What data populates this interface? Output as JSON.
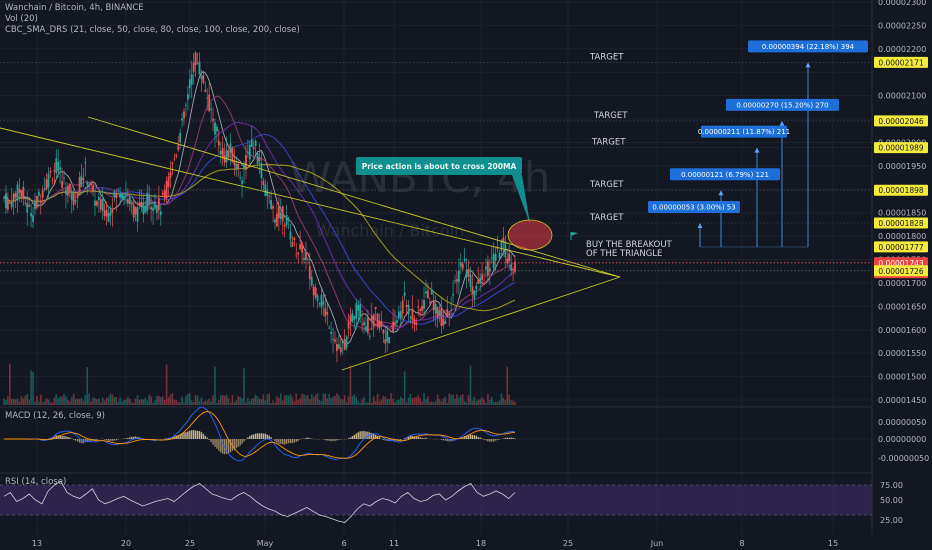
{
  "header": {
    "title": "Wanchain / Bitcoin, 4h, BINANCE",
    "vol_label": "Vol (20)",
    "sma_label": "CBC_SMA_DRS (21, close, 50, close, 80, close, 100, close, 200, close)"
  },
  "watermark": {
    "symbol": "WANBTC, 4h",
    "name": "Wanchain / Bitcoin"
  },
  "colors": {
    "background": "#131722",
    "up": "#26a69a",
    "down": "#ef5350",
    "trendline": "#c9c928",
    "target_box": "#1e6fd9",
    "arrow": "#5ba3f5",
    "callout": "#0f8f8f",
    "yellow_label": "#f5eb3b",
    "red_label": "#f04040",
    "rsi_band": "#3b2a5c",
    "macd_line": "#2962ff",
    "signal_line": "#ff9800"
  },
  "chart_data": [
    {
      "type": "candlestick",
      "title": "Wanchain / Bitcoin, 4h, BINANCE",
      "ylim": [
        1.44e-05,
        2.3e-05
      ],
      "x_axis_labels": [
        "13",
        "20",
        "25",
        "May",
        "6",
        "11",
        "18",
        "25",
        "Jun",
        "8",
        "15"
      ],
      "y_axis_labels": [
        "0.00002300",
        "0.00002250",
        "0.00002200",
        "0.00002100",
        "0.00002050",
        "0.00002000",
        "0.00001950",
        "0.00001850",
        "0.00001800",
        "0.00001750",
        "0.00001700",
        "0.00001650",
        "0.00001600",
        "0.00001550",
        "0.00001500",
        "0.00001450"
      ],
      "price_labels": [
        {
          "text": "0.00002171",
          "value": 2.171e-05,
          "color": "yellow"
        },
        {
          "text": "0.00002046",
          "value": 2.046e-05,
          "color": "yellow"
        },
        {
          "text": "0.00001989",
          "value": 1.989e-05,
          "color": "yellow"
        },
        {
          "text": "0.00001898",
          "value": 1.898e-05,
          "color": "yellow"
        },
        {
          "text": "0.00001828",
          "value": 1.828e-05,
          "color": "yellow"
        },
        {
          "text": "0.00001777",
          "value": 1.777e-05,
          "color": "yellow"
        },
        {
          "text": "0.00001743",
          "value": 1.743e-05,
          "color": "red"
        },
        {
          "text": "03:30:01",
          "value": 1.735e-05,
          "color": "red"
        },
        {
          "text": "0.00001726",
          "value": 1.726e-05,
          "color": "yellow"
        }
      ],
      "targets": [
        {
          "level": 2.171e-05,
          "label": "TARGET",
          "box": "0.00000394 (22.18%) 394"
        },
        {
          "level": 2.046e-05,
          "label": "TARGET",
          "box": "0.00000270 (15.20%) 270"
        },
        {
          "level": 1.989e-05,
          "label": "TARGET",
          "box": "0.00000211 (11.87%) 211"
        },
        {
          "level": 1.898e-05,
          "label": "TARGET",
          "box": "0.00000121 (6.79%) 121"
        },
        {
          "level": 1.828e-05,
          "label": "TARGET",
          "box": "0.00000053 (3.00%) 53"
        }
      ],
      "annotations": {
        "callout": "Price action is about to cross 200MA",
        "buy_line1": "BUY THE BREAKOUT",
        "buy_line2": "OF THE TRIANGLE"
      },
      "price_path": [
        1.88e-05,
        1.87e-05,
        1.89e-05,
        1.9e-05,
        1.86e-05,
        1.85e-05,
        1.88e-05,
        1.91e-05,
        1.93e-05,
        1.95e-05,
        1.92e-05,
        1.9e-05,
        1.88e-05,
        1.91e-05,
        1.94e-05,
        1.9e-05,
        1.87e-05,
        1.86e-05,
        1.85e-05,
        1.88e-05,
        1.9e-05,
        1.89e-05,
        1.86e-05,
        1.85e-05,
        1.86e-05,
        1.88e-05,
        1.87e-05,
        1.86e-05,
        1.9e-05,
        1.95e-05,
        2e-05,
        2.05e-05,
        2.12e-05,
        2.18e-05,
        2.15e-05,
        2.1e-05,
        2.05e-05,
        2e-05,
        1.97e-05,
        1.98e-05,
        1.95e-05,
        1.93e-05,
        1.97e-05,
        2e-05,
        1.96e-05,
        1.9e-05,
        1.86e-05,
        1.84e-05,
        1.85e-05,
        1.82e-05,
        1.78e-05,
        1.77e-05,
        1.76e-05,
        1.7e-05,
        1.68e-05,
        1.65e-05,
        1.62e-05,
        1.58e-05,
        1.55e-05,
        1.58e-05,
        1.63e-05,
        1.65e-05,
        1.62e-05,
        1.6e-05,
        1.63e-05,
        1.61e-05,
        1.58e-05,
        1.6e-05,
        1.63e-05,
        1.66e-05,
        1.64e-05,
        1.62e-05,
        1.65e-05,
        1.68e-05,
        1.66e-05,
        1.63e-05,
        1.62e-05,
        1.66e-05,
        1.7e-05,
        1.75e-05,
        1.72e-05,
        1.68e-05,
        1.7e-05,
        1.72e-05,
        1.74e-05,
        1.76e-05,
        1.78e-05,
        1.75e-05,
        1.74e-05
      ]
    },
    {
      "type": "line",
      "title": "MACD (12, 26, close, 9)",
      "y_axis_labels": [
        "0.00000050",
        "0.00000000",
        "-0.00000050"
      ],
      "ylim": [
        -7e-07,
        6e-07
      ]
    },
    {
      "type": "line",
      "title": "RSI (14, close)",
      "y_axis_labels": [
        "75.00",
        "50.00",
        "25.00"
      ],
      "ylim": [
        15,
        85
      ],
      "band": [
        30,
        70
      ],
      "values": [
        55,
        60,
        48,
        52,
        58,
        50,
        45,
        62,
        70,
        75,
        60,
        55,
        52,
        58,
        65,
        50,
        45,
        48,
        52,
        55,
        50,
        46,
        42,
        45,
        48,
        50,
        52,
        48,
        55,
        62,
        68,
        72,
        65,
        58,
        55,
        52,
        50,
        56,
        60,
        55,
        48,
        42,
        38,
        35,
        30,
        28,
        32,
        36,
        40,
        35,
        30,
        28,
        25,
        22,
        20,
        28,
        38,
        45,
        42,
        48,
        52,
        50,
        46,
        55,
        60,
        52,
        48,
        50,
        56,
        58,
        50,
        55,
        62,
        68,
        72,
        60,
        55,
        58,
        62,
        58,
        52,
        60
      ]
    }
  ]
}
